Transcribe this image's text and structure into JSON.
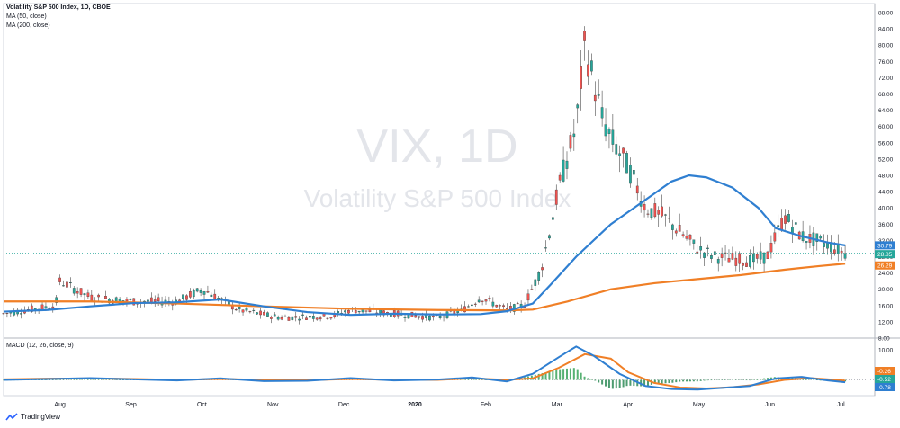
{
  "legend": {
    "title": "Volatility S&P 500 Index, 1D, CBOE",
    "ma50": "MA (50, close)",
    "ma200": "MA (200, close)"
  },
  "watermark": {
    "symbol": "VIX, 1D",
    "name": "Volatility S&P 500 Index"
  },
  "macd_legend": "MACD (12, 26, close, 9)",
  "footer": {
    "brand": "TradingView",
    "icon": "tradingview-logo-icon"
  },
  "colors": {
    "up": "#26a69a",
    "down": "#ef5350",
    "ma50": "#2f7fd1",
    "ma200": "#f07f26",
    "price_line": "#26a69a",
    "macd_hist_pos": "#26a69a",
    "macd_hist_neg": "#26a69a"
  },
  "chart_data": {
    "type": "candlestick",
    "x_labels": [
      "Aug",
      "Sep",
      "Oct",
      "Nov",
      "Dec",
      "2020",
      "Feb",
      "Mar",
      "Apr",
      "May",
      "Jun",
      "Jul"
    ],
    "price_axis": {
      "ticks": [
        "88.00",
        "84.00",
        "80.00",
        "76.00",
        "72.00",
        "68.00",
        "64.00",
        "60.00",
        "56.00",
        "52.00",
        "48.00",
        "44.00",
        "40.00",
        "36.00",
        "32.00",
        "28.00",
        "24.00",
        "20.00",
        "16.00",
        "12.00",
        "8.00"
      ],
      "min": 8,
      "max": 88
    },
    "price_labels": [
      {
        "value": 30.79,
        "text": "30.79",
        "color": "#2f7fd1"
      },
      {
        "value": 28.85,
        "text": "28.85",
        "color": "#26a69a"
      },
      {
        "value": 26.29,
        "text": "26.29",
        "color": "#f07f26"
      }
    ],
    "ma50": [
      [
        0,
        14.5
      ],
      [
        0.05,
        14.9
      ],
      [
        0.1,
        15.8
      ],
      [
        0.15,
        16.6
      ],
      [
        0.2,
        16.8
      ],
      [
        0.25,
        17.5
      ],
      [
        0.3,
        15.8
      ],
      [
        0.35,
        14.4
      ],
      [
        0.4,
        13.7
      ],
      [
        0.45,
        14.0
      ],
      [
        0.5,
        13.8
      ],
      [
        0.55,
        13.9
      ],
      [
        0.58,
        14.6
      ],
      [
        0.61,
        16.5
      ],
      [
        0.63,
        21.0
      ],
      [
        0.66,
        28.0
      ],
      [
        0.7,
        36.0
      ],
      [
        0.74,
        42.0
      ],
      [
        0.77,
        46.5
      ],
      [
        0.79,
        48.0
      ],
      [
        0.81,
        47.5
      ],
      [
        0.84,
        45.0
      ],
      [
        0.87,
        40.0
      ],
      [
        0.89,
        35.0
      ],
      [
        0.92,
        33.0
      ],
      [
        0.95,
        31.5
      ],
      [
        0.97,
        30.79
      ]
    ],
    "ma200": [
      [
        0,
        17.0
      ],
      [
        0.1,
        17.0
      ],
      [
        0.2,
        16.5
      ],
      [
        0.3,
        15.8
      ],
      [
        0.4,
        15.2
      ],
      [
        0.5,
        14.9
      ],
      [
        0.58,
        14.8
      ],
      [
        0.61,
        15.0
      ],
      [
        0.65,
        17.0
      ],
      [
        0.7,
        20.0
      ],
      [
        0.75,
        21.5
      ],
      [
        0.8,
        22.5
      ],
      [
        0.85,
        23.5
      ],
      [
        0.9,
        24.8
      ],
      [
        0.94,
        25.7
      ],
      [
        0.97,
        26.29
      ]
    ],
    "macd_axis": {
      "ticks": [
        "10.00",
        "0.00"
      ]
    },
    "macd_labels": [
      {
        "text": "-0.26",
        "color": "#f07f26"
      },
      {
        "text": "-0.52",
        "color": "#26a69a"
      },
      {
        "text": "-0.78",
        "color": "#2f7fd1"
      }
    ],
    "macd_line": [
      [
        0,
        0
      ],
      [
        0.05,
        0.3
      ],
      [
        0.1,
        0.6
      ],
      [
        0.15,
        0.2
      ],
      [
        0.2,
        -0.2
      ],
      [
        0.25,
        0.5
      ],
      [
        0.3,
        -0.4
      ],
      [
        0.35,
        -0.3
      ],
      [
        0.4,
        0.6
      ],
      [
        0.45,
        -0.2
      ],
      [
        0.5,
        0.1
      ],
      [
        0.54,
        0.8
      ],
      [
        0.58,
        -0.5
      ],
      [
        0.61,
        2.0
      ],
      [
        0.64,
        7.5
      ],
      [
        0.66,
        11.0
      ],
      [
        0.68,
        8.0
      ],
      [
        0.71,
        2.0
      ],
      [
        0.74,
        -2.0
      ],
      [
        0.77,
        -3.0
      ],
      [
        0.8,
        -3.2
      ],
      [
        0.83,
        -2.6
      ],
      [
        0.86,
        -2.0
      ],
      [
        0.89,
        0.5
      ],
      [
        0.92,
        1.0
      ],
      [
        0.95,
        -0.2
      ],
      [
        0.97,
        -0.78
      ]
    ],
    "signal_line": [
      [
        0,
        0.2
      ],
      [
        0.05,
        0.4
      ],
      [
        0.1,
        0.5
      ],
      [
        0.15,
        0.3
      ],
      [
        0.2,
        0.0
      ],
      [
        0.25,
        0.3
      ],
      [
        0.3,
        0.0
      ],
      [
        0.35,
        -0.1
      ],
      [
        0.4,
        0.3
      ],
      [
        0.45,
        0.0
      ],
      [
        0.5,
        0.0
      ],
      [
        0.54,
        0.5
      ],
      [
        0.58,
        0.0
      ],
      [
        0.61,
        0.5
      ],
      [
        0.64,
        4.0
      ],
      [
        0.67,
        8.5
      ],
      [
        0.7,
        7.0
      ],
      [
        0.72,
        2.5
      ],
      [
        0.75,
        -1.0
      ],
      [
        0.78,
        -2.5
      ],
      [
        0.81,
        -2.8
      ],
      [
        0.84,
        -2.4
      ],
      [
        0.87,
        -1.5
      ],
      [
        0.9,
        0.0
      ],
      [
        0.93,
        0.6
      ],
      [
        0.96,
        0.0
      ],
      [
        0.97,
        -0.26
      ]
    ]
  }
}
